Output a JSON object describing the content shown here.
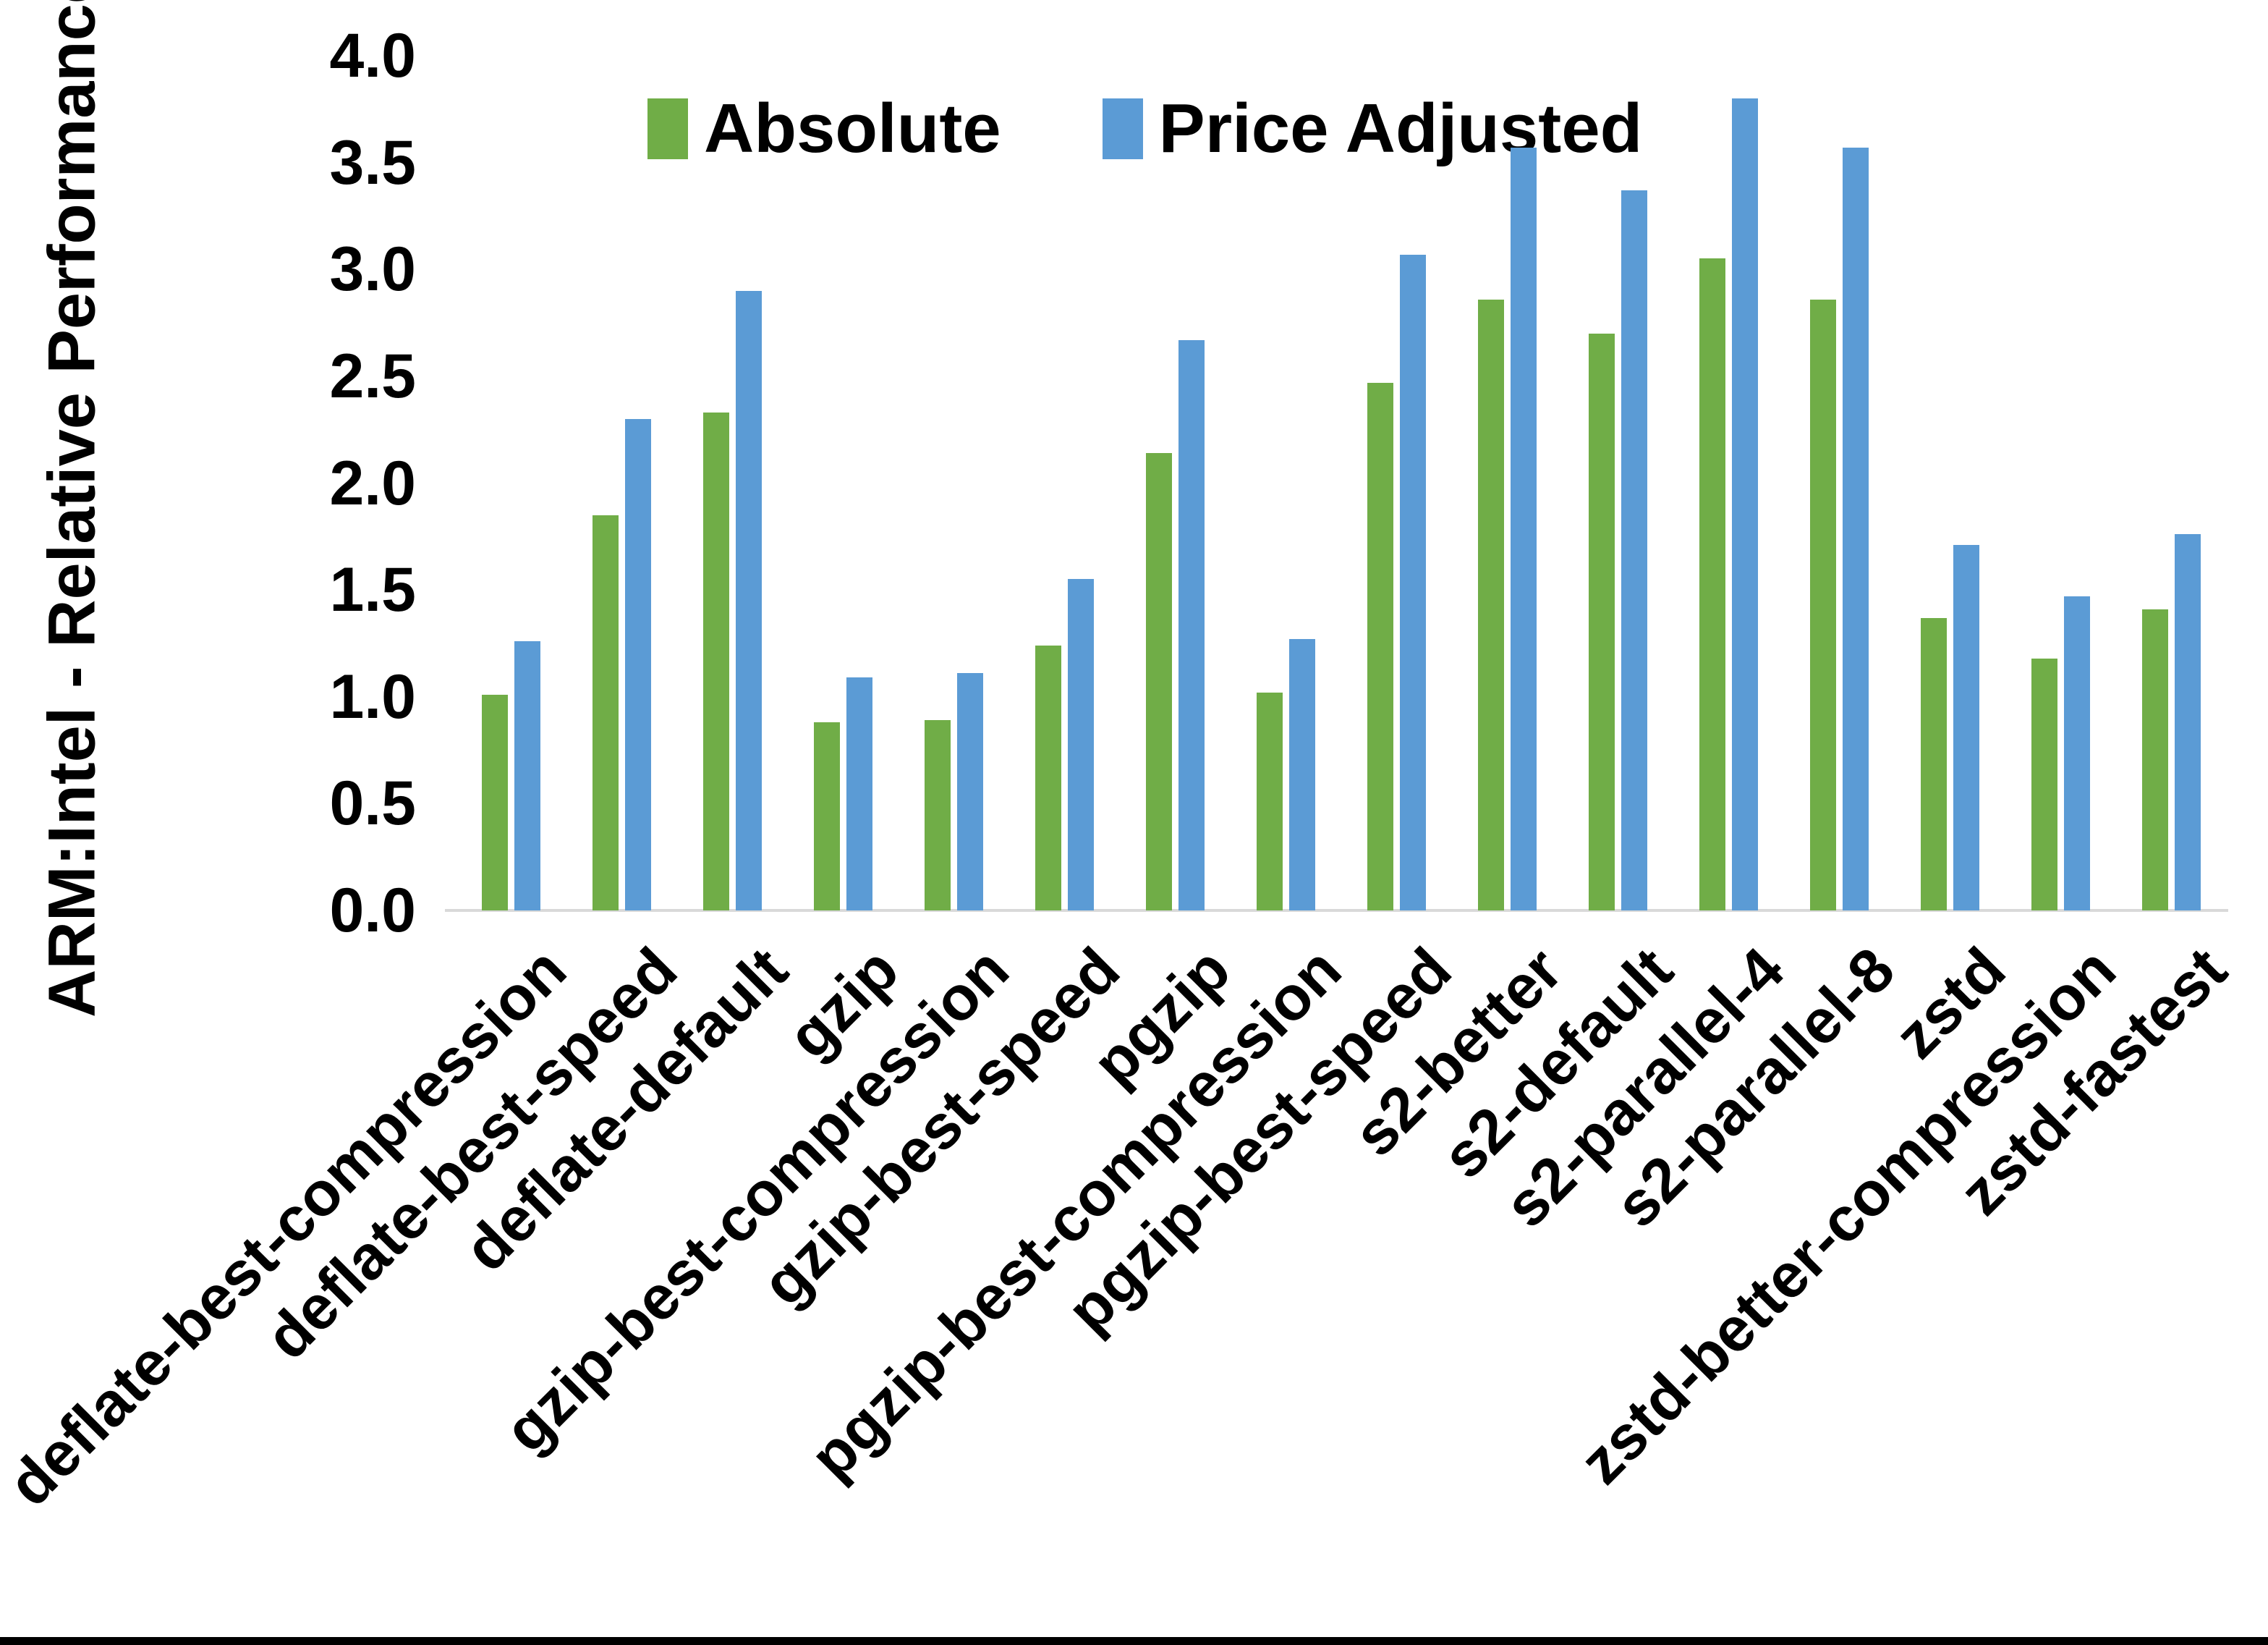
{
  "chart_data": {
    "type": "bar",
    "title": "",
    "xlabel": "",
    "ylabel": "ARM:Intel - Relative Performance",
    "ylim": [
      0.0,
      4.0
    ],
    "y_ticks": [
      "0.0",
      "0.5",
      "1.0",
      "1.5",
      "2.0",
      "2.5",
      "3.0",
      "3.5",
      "4.0"
    ],
    "grid": false,
    "legend_position": "top-center",
    "categories": [
      "deflate-best-compression",
      "deflate-best-speed",
      "deflate-default",
      "gzip",
      "gzip-best-compression",
      "gzip-best-speed",
      "pgzip",
      "pgzip-best-compression",
      "pgzip-best-speed",
      "s2-better",
      "s2-default",
      "s2-parallel-4",
      "s2-parallel-8",
      "zstd",
      "zstd-better-compression",
      "zstd-fastest"
    ],
    "series": [
      {
        "name": "Absolute",
        "color": "#70AD47",
        "values": [
          1.01,
          1.85,
          2.33,
          0.88,
          0.89,
          1.24,
          2.14,
          1.02,
          2.47,
          2.86,
          2.7,
          3.05,
          2.86,
          1.37,
          1.18,
          1.41
        ]
      },
      {
        "name": "Price Adjusted",
        "color": "#5B9BD5",
        "values": [
          1.26,
          2.3,
          2.9,
          1.09,
          1.11,
          1.55,
          2.67,
          1.27,
          3.07,
          3.57,
          3.37,
          3.8,
          3.57,
          1.71,
          1.47,
          1.76
        ]
      }
    ]
  },
  "colors": {
    "axis_line": "#d9d9d9",
    "text": "#000000",
    "background": "#ffffff",
    "bottom_border": "#000000"
  }
}
